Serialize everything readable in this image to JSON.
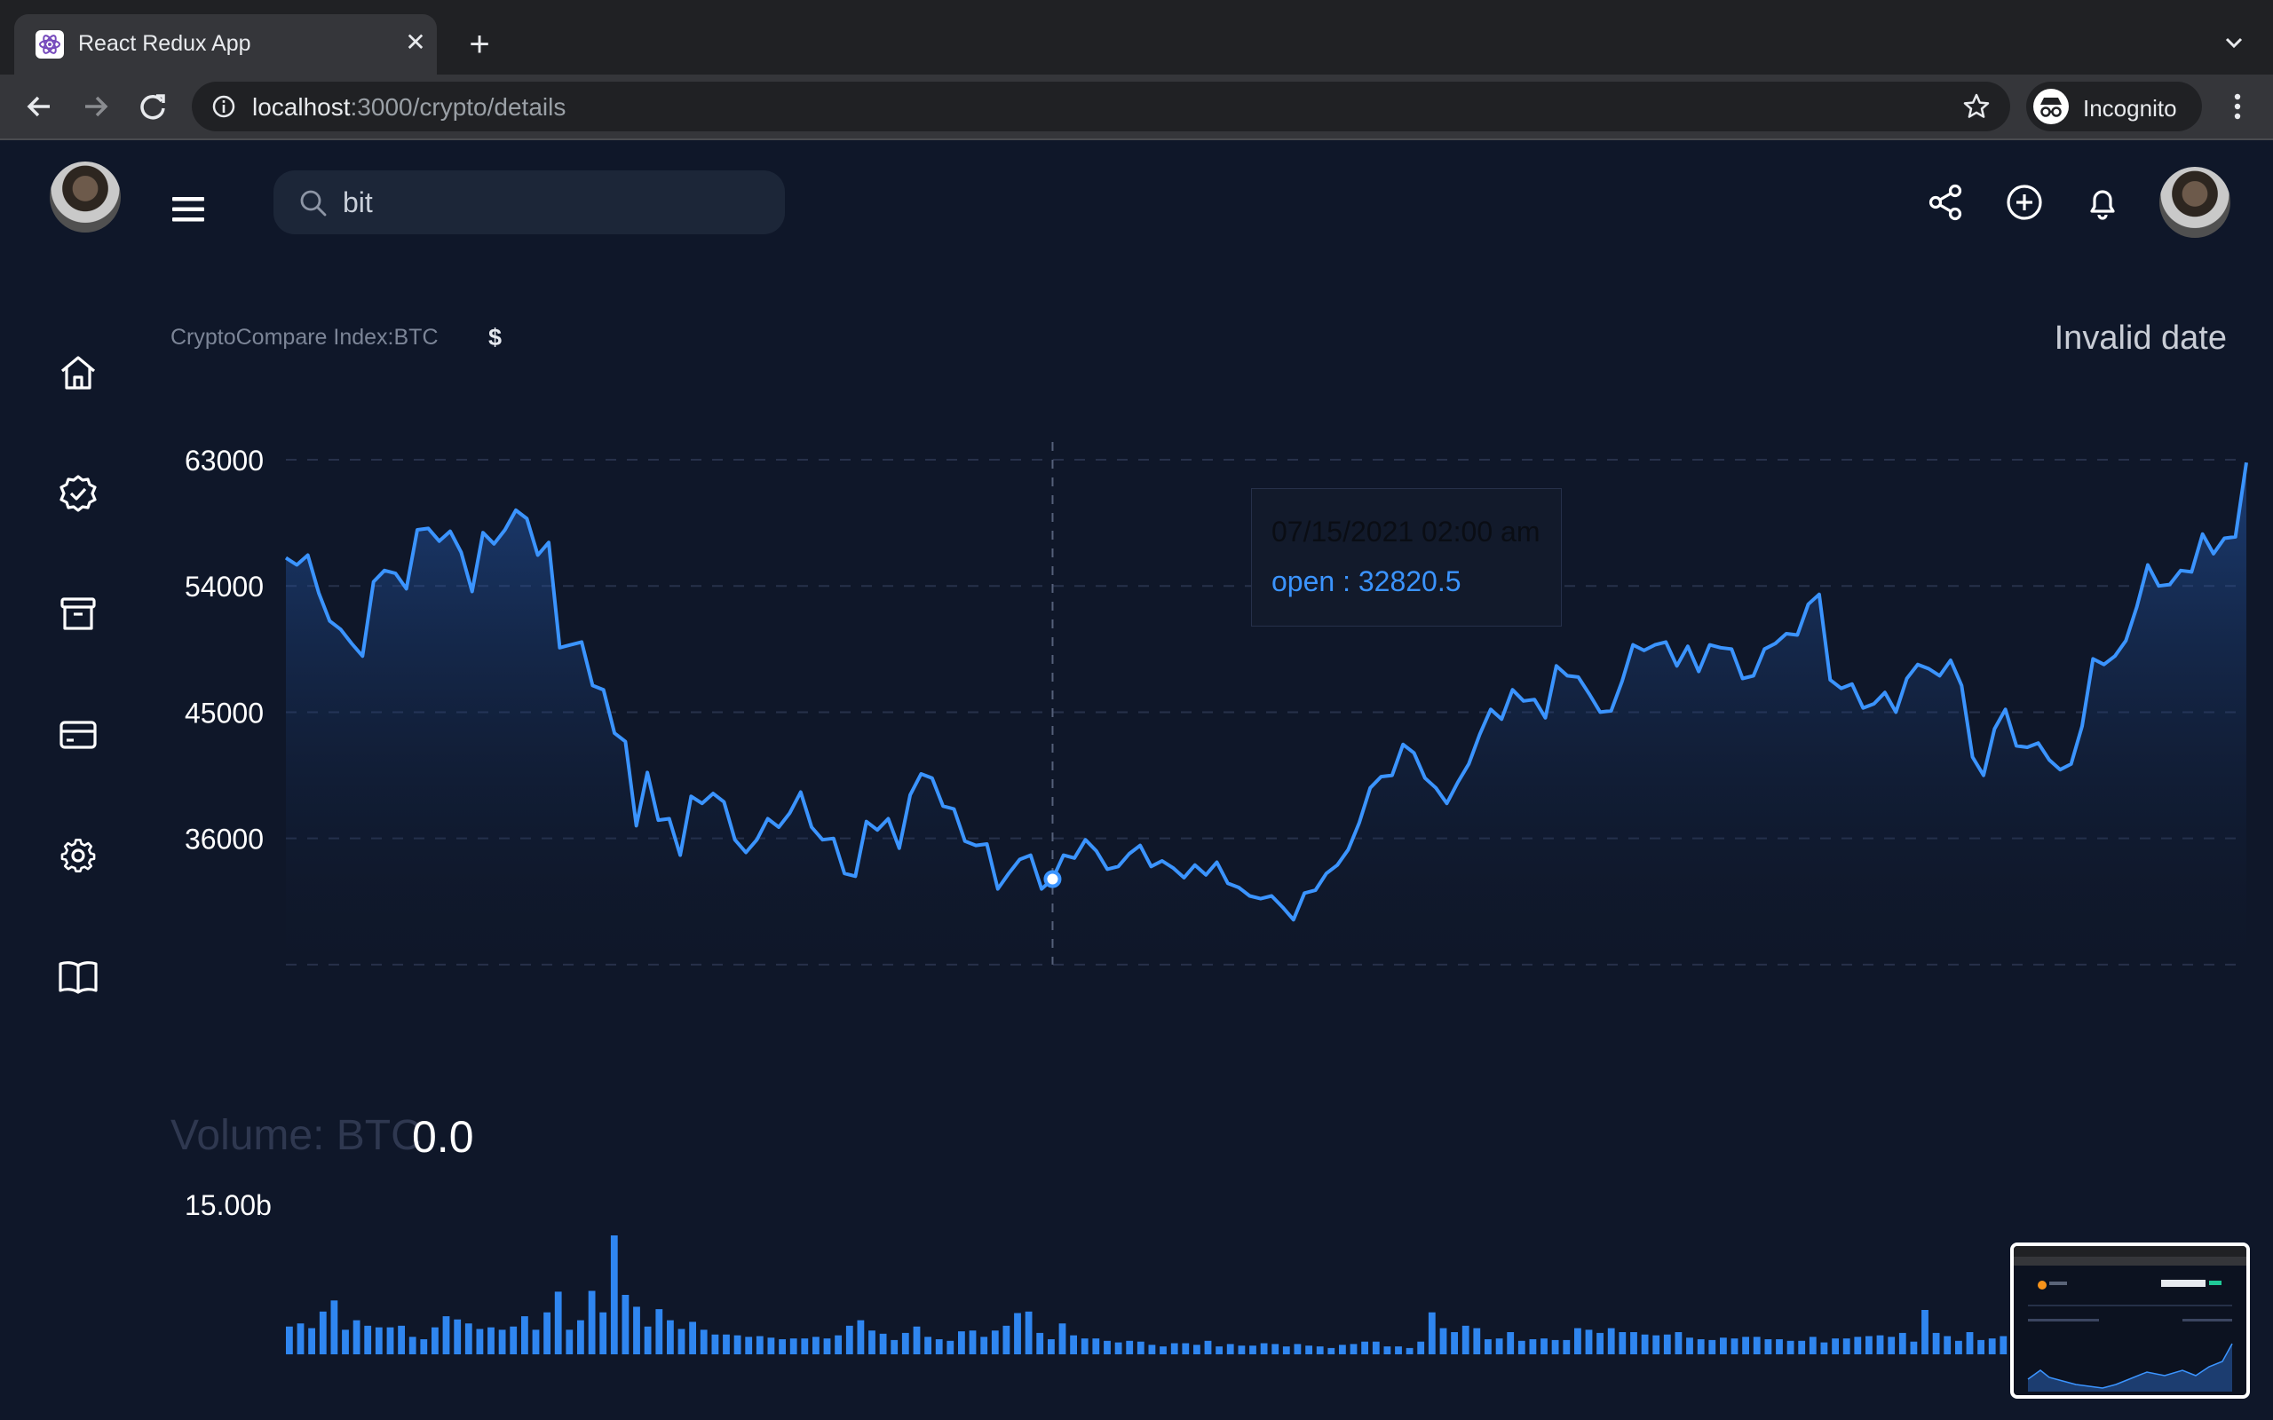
{
  "browser": {
    "tab_title": "React Redux App",
    "close_glyph": "✕",
    "new_tab_glyph": "+",
    "url_host": "localhost",
    "url_path": ":3000/crypto/details",
    "incognito_label": "Incognito"
  },
  "header": {
    "search_value": "bit",
    "icons": [
      "share-icon",
      "add-circle-icon",
      "bell-icon",
      "avatar"
    ]
  },
  "sidebar": {
    "items": [
      {
        "name": "home-icon"
      },
      {
        "name": "verified-icon"
      },
      {
        "name": "archive-icon"
      },
      {
        "name": "card-icon"
      },
      {
        "name": "settings-icon"
      },
      {
        "name": "book-icon"
      }
    ]
  },
  "chart_header": {
    "index_label": "CryptoCompare Index:BTC",
    "currency": "$",
    "date_label": "Invalid date"
  },
  "tooltip": {
    "date": "07/15/2021 02:00 am",
    "value": "open : 32820.5"
  },
  "volume": {
    "label": "Volume: BTC",
    "value": "0.0",
    "max_label": "15.00b"
  },
  "colors": {
    "background": "#0f1729",
    "line": "#3b94ff",
    "bar": "#2f86f0"
  },
  "chart_data": [
    {
      "type": "area",
      "ylim": [
        22500,
        63000
      ],
      "yticks": [
        {
          "value": 63000,
          "label": "63000"
        },
        {
          "value": 54000,
          "label": "54000"
        },
        {
          "value": 45000,
          "label": "45000"
        },
        {
          "value": 36000,
          "label": "36000"
        }
      ],
      "grid": true,
      "highlight_index": 70,
      "series": [
        {
          "values": [
            56000,
            55500,
            56200,
            53500,
            51500,
            50900,
            49900,
            49000,
            54300,
            55100,
            54900,
            53800,
            58000,
            58100,
            57200,
            57900,
            56400,
            53600,
            57800,
            57000,
            58000,
            59400,
            58800,
            56200,
            57100,
            49600,
            49800,
            50000,
            46900,
            46600,
            43500,
            42900,
            36900,
            40700,
            37300,
            37400,
            34800,
            39000,
            38500,
            39200,
            38600,
            35900,
            35000,
            35900,
            37400,
            36800,
            37800,
            39300,
            36800,
            35900,
            36000,
            33500,
            33300,
            37200,
            36600,
            37400,
            35300,
            39100,
            40600,
            40300,
            38300,
            38100,
            35800,
            35500,
            35600,
            32400,
            33500,
            34500,
            34800,
            32400,
            33100,
            34800,
            34600,
            35900,
            35100,
            33800,
            34000,
            34900,
            35500,
            34000,
            34400,
            33900,
            33200,
            34100,
            33400,
            34300,
            32800,
            32500,
            31900,
            31700,
            31900,
            31100,
            30200,
            32100,
            32300,
            33500,
            34100,
            35200,
            37100,
            39600,
            40400,
            40500,
            42700,
            42100,
            40300,
            39600,
            38500,
            40000,
            41300,
            43400,
            45200,
            44500,
            46600,
            45800,
            45900,
            44600,
            48300,
            47600,
            47500,
            46300,
            45000,
            45100,
            47200,
            49800,
            49400,
            49800,
            50000,
            48300,
            49700,
            47900,
            49800,
            49600,
            49500,
            47400,
            47600,
            49500,
            49900,
            50600,
            50500,
            52700,
            53400,
            47300,
            46700,
            47000,
            45300,
            45600,
            46400,
            45000,
            47400,
            48400,
            48100,
            47600,
            48700,
            46900,
            41800,
            40500,
            43800,
            45200,
            42600,
            42500,
            42800,
            41600,
            40900,
            41300,
            44000,
            48800,
            48400,
            49000,
            50100,
            52500,
            55500,
            54000,
            54100,
            55100,
            55000,
            57700,
            56300,
            57400,
            57500,
            62800
          ]
        }
      ]
    },
    {
      "type": "bar",
      "ylim": [
        0,
        15000000000
      ],
      "ytick_label": "15.00b",
      "series": [
        {
          "values": [
            3.5,
            3.9,
            3.3,
            5.4,
            6.8,
            3.1,
            4.3,
            3.6,
            3.4,
            3.4,
            3.6,
            2.2,
            1.9,
            3.4,
            4.8,
            4.4,
            3.9,
            3.2,
            3.4,
            3.1,
            3.5,
            4.8,
            3.1,
            5.3,
            7.9,
            3.1,
            4.3,
            8.0,
            5.3,
            15.0,
            7.5,
            6.0,
            3.5,
            5.7,
            4.3,
            3.2,
            4.1,
            3.1,
            2.5,
            2.5,
            2.4,
            2.2,
            2.3,
            2.1,
            1.9,
            2.0,
            2.0,
            2.2,
            2.0,
            2.4,
            3.6,
            4.3,
            3.0,
            2.6,
            1.8,
            2.7,
            3.5,
            2.2,
            1.9,
            1.7,
            2.9,
            3.0,
            2.2,
            3.0,
            3.6,
            5.2,
            5.4,
            2.7,
            1.9,
            3.9,
            2.4,
            2.0,
            2.0,
            1.7,
            1.5,
            1.7,
            1.6,
            1.2,
            1.0,
            1.4,
            1.4,
            1.2,
            1.7,
            1.0,
            1.3,
            1.1,
            1.1,
            1.4,
            1.3,
            1.0,
            1.3,
            1.1,
            1.0,
            0.8,
            1.2,
            1.3,
            1.6,
            1.6,
            1.0,
            1.0,
            0.8,
            1.6,
            5.3,
            3.3,
            2.8,
            3.6,
            3.3,
            1.9,
            2.0,
            2.8,
            1.7,
            1.9,
            2.0,
            1.8,
            1.8,
            3.3,
            3.1,
            2.7,
            3.3,
            2.8,
            2.8,
            2.5,
            2.4,
            2.5,
            2.8,
            2.1,
            1.9,
            1.8,
            2.1,
            2.0,
            2.2,
            2.2,
            1.9,
            1.9,
            1.7,
            1.7,
            2.2,
            1.5,
            2.0,
            2.0,
            2.2,
            2.3,
            2.4,
            2.2,
            2.7,
            1.6,
            5.6,
            2.7,
            2.3,
            1.7,
            2.8,
            1.8,
            2.0,
            2.3,
            2.8,
            2.8,
            1.8,
            2.3,
            1.8,
            2.0,
            1.8,
            1.6,
            1.5,
            1.4,
            1.5,
            1.4,
            1.5,
            1.3,
            4.1,
            4.1,
            3.5,
            2.7,
            1.9,
            3.9,
            2.0
          ]
        }
      ]
    }
  ]
}
